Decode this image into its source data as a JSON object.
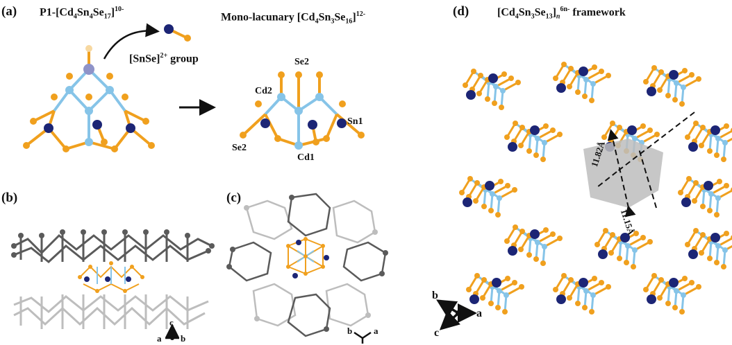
{
  "colors": {
    "se": "#f0a01e",
    "cd": "#86c4e8",
    "sn": "#1c2575",
    "dark": "#5a5a5a",
    "light": "#bdbdbd",
    "axis": "#111111",
    "cavity": "#bdbdbd"
  },
  "panel_a": {
    "letter": "(a)",
    "left_title_pre": "P1-[Cd",
    "left_title_s1": "4",
    "left_title_m1": "Sn",
    "left_title_s2": "4",
    "left_title_m2": "Se",
    "left_title_s3": "17",
    "left_title_end": "]",
    "left_title_sup": "10-",
    "group_pre": "[SnSe]",
    "group_sup": "2+",
    "group_post": " group",
    "right_title_pre": "Mono-lacunary [Cd",
    "right_title_s1": "4",
    "right_title_m1": "Sn",
    "right_title_s2": "3",
    "right_title_m2": "Se",
    "right_title_s3": "16",
    "right_title_end": "]",
    "right_title_sup": "12-",
    "atom_se2_top": "Se2",
    "atom_cd2": "Cd2",
    "atom_sn1": "Sn1",
    "atom_se2_left": "Se2",
    "atom_cd1": "Cd1"
  },
  "panel_b": {
    "letter": "(b)",
    "axis_up": "c",
    "axis_left": "a",
    "axis_right": "b"
  },
  "panel_c": {
    "letter": "(c)",
    "axis_left": "b",
    "axis_right": "a"
  },
  "panel_d": {
    "letter": "(d)",
    "title_pre": "[Cd",
    "title_s1": "4",
    "title_m1": "Sn",
    "title_s2": "3",
    "title_m2": "Se",
    "title_s3": "13",
    "title_end": "]",
    "title_n": "n",
    "title_sup": "6n-",
    "title_post": " framework",
    "dist1": "11.82Å",
    "dist2": "11.15Å",
    "axis_b": "b",
    "axis_a": "a",
    "axis_c": "c"
  }
}
